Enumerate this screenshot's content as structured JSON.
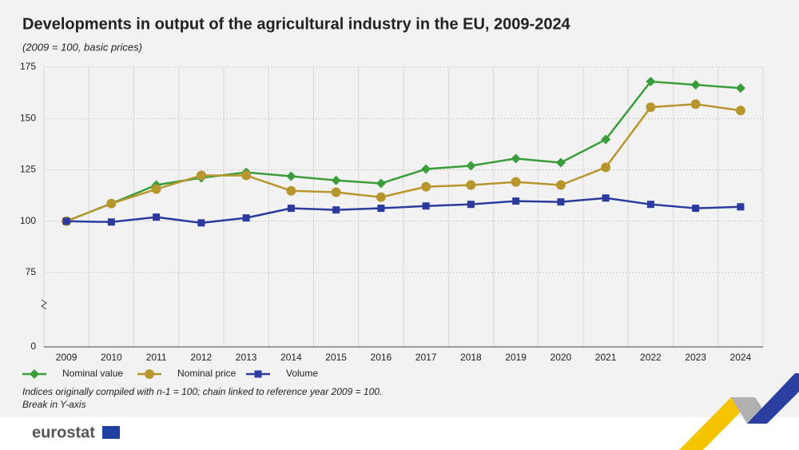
{
  "chart_data": {
    "type": "line",
    "title": "Developments in output of the agricultural industry in the EU, 2009-2024",
    "subtitle": "(2009 = 100, basic prices)",
    "categories": [
      "2009",
      "2010",
      "2011",
      "2012",
      "2013",
      "2014",
      "2015",
      "2016",
      "2017",
      "2018",
      "2019",
      "2020",
      "2021",
      "2022",
      "2023",
      "2024"
    ],
    "series": [
      {
        "name": "Nominal value",
        "color": "#3a9d3a",
        "marker": "diamond",
        "values": [
          100,
          108.6,
          117.6,
          121.1,
          123.8,
          121.9,
          119.9,
          118.4,
          125.4,
          127,
          130.5,
          128.5,
          139.8,
          168,
          166.4,
          164.8
        ]
      },
      {
        "name": "Nominal price",
        "color": "#b8962e",
        "marker": "circle",
        "values": [
          100,
          108.6,
          115.6,
          122.3,
          122.3,
          114.8,
          114.1,
          111.7,
          116.8,
          117.6,
          119.1,
          117.6,
          126.2,
          155.5,
          157,
          153.9
        ]
      },
      {
        "name": "Volume",
        "color": "#2b3a9e",
        "marker": "square",
        "values": [
          100,
          99.6,
          102,
          99.2,
          101.6,
          106.3,
          105.5,
          106.3,
          107.4,
          108.2,
          109.8,
          109.4,
          111.3,
          108.2,
          106.3,
          107
        ]
      }
    ],
    "ylim": [
      0,
      175
    ],
    "yticks": [
      0,
      75,
      100,
      125,
      150,
      175
    ],
    "y_break": true,
    "grid": true,
    "legend": "bottom",
    "notes": [
      "Indices originally compiled with n-1 = 100; chain linked to reference year 2009 = 100.",
      "Break in Y-axis"
    ],
    "source_logo": "eurostat"
  }
}
